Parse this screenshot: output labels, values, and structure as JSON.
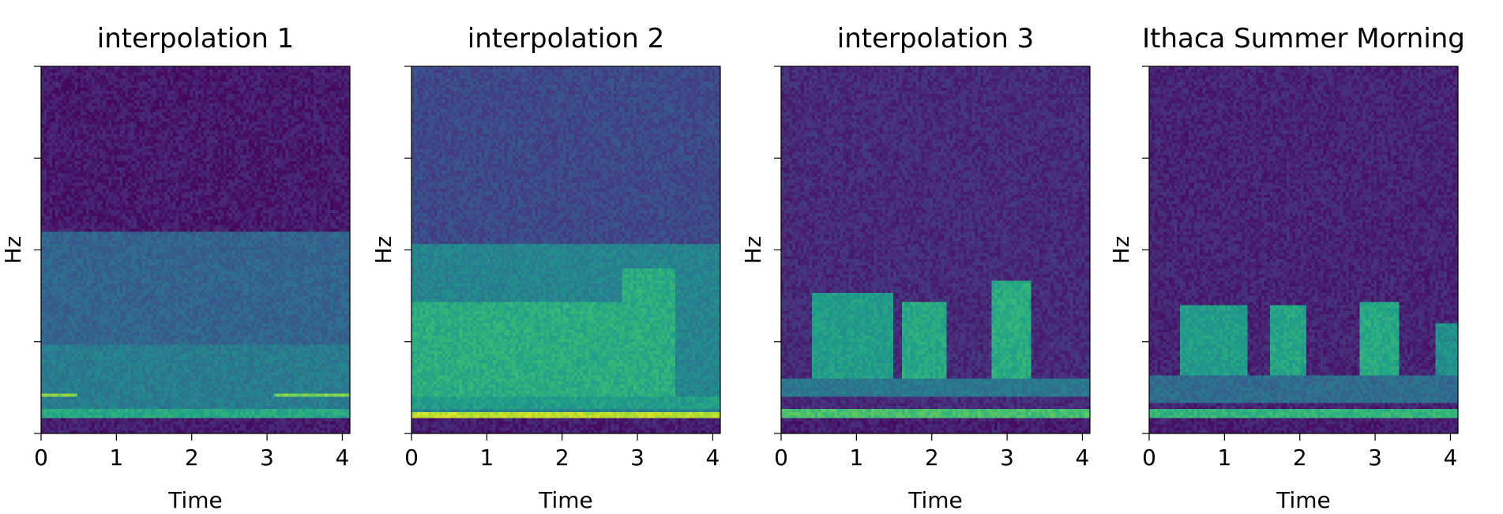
{
  "chart_data": [
    {
      "type": "heatmap",
      "title": "interpolation 1",
      "xlabel": "Time",
      "ylabel": "Hz",
      "xlim": [
        0,
        4.1
      ],
      "xticks": [
        "0",
        "1",
        "2",
        "3",
        "4"
      ],
      "colormap": "viridis",
      "tone": {
        "base": 0.07,
        "bands": [
          {
            "x0": 0.0,
            "x1": 4.1,
            "y0": 0.0,
            "y1": 0.55,
            "level": 0.32
          },
          {
            "x0": 0.0,
            "x1": 4.1,
            "y0": 0.0,
            "y1": 0.24,
            "level": 0.42
          },
          {
            "x0": 0.0,
            "x1": 0.5,
            "y0": 0.1,
            "y1": 0.11,
            "level": 0.8
          },
          {
            "x0": 3.1,
            "x1": 4.1,
            "y0": 0.1,
            "y1": 0.11,
            "level": 0.8
          },
          {
            "x0": 0.0,
            "x1": 4.1,
            "y0": 0.045,
            "y1": 0.065,
            "level": 0.6
          }
        ]
      }
    },
    {
      "type": "heatmap",
      "title": "interpolation 2",
      "xlabel": "Time",
      "ylabel": "Hz",
      "xlim": [
        0,
        4.1
      ],
      "xticks": [
        "0",
        "1",
        "2",
        "3",
        "4"
      ],
      "colormap": "viridis",
      "tone": {
        "base": 0.22,
        "bands": [
          {
            "x0": 0.0,
            "x1": 4.1,
            "y0": 0.0,
            "y1": 0.52,
            "level": 0.45
          },
          {
            "x0": 0.0,
            "x1": 3.2,
            "y0": 0.1,
            "y1": 0.36,
            "level": 0.62
          },
          {
            "x0": 2.8,
            "x1": 3.5,
            "y0": 0.1,
            "y1": 0.45,
            "level": 0.62
          },
          {
            "x0": 0.0,
            "x1": 4.1,
            "y0": 0.07,
            "y1": 0.1,
            "level": 0.55
          },
          {
            "x0": 0.0,
            "x1": 4.1,
            "y0": 0.04,
            "y1": 0.06,
            "level": 0.9
          }
        ]
      }
    },
    {
      "type": "heatmap",
      "title": "interpolation 3",
      "xlabel": "Time",
      "ylabel": "Hz",
      "xlim": [
        0,
        4.1
      ],
      "xticks": [
        "0",
        "1",
        "2",
        "3",
        "4"
      ],
      "colormap": "viridis",
      "tone": {
        "base": 0.12,
        "bands": [
          {
            "x0": 0.4,
            "x1": 1.5,
            "y0": 0.15,
            "y1": 0.38,
            "level": 0.55
          },
          {
            "x0": 1.6,
            "x1": 2.2,
            "y0": 0.15,
            "y1": 0.36,
            "level": 0.6
          },
          {
            "x0": 2.8,
            "x1": 3.3,
            "y0": 0.15,
            "y1": 0.42,
            "level": 0.62
          },
          {
            "x0": 0.0,
            "x1": 4.1,
            "y0": 0.1,
            "y1": 0.15,
            "level": 0.4
          },
          {
            "x0": 0.0,
            "x1": 4.1,
            "y0": 0.045,
            "y1": 0.065,
            "level": 0.7
          }
        ]
      }
    },
    {
      "type": "heatmap",
      "title": "Ithaca Summer Morning",
      "xlabel": "Time",
      "ylabel": "Hz",
      "xlim": [
        0,
        4.1
      ],
      "xticks": [
        "0",
        "1",
        "2",
        "3",
        "4"
      ],
      "colormap": "viridis",
      "tone": {
        "base": 0.1,
        "bands": [
          {
            "x0": 0.4,
            "x1": 1.3,
            "y0": 0.16,
            "y1": 0.35,
            "level": 0.55
          },
          {
            "x0": 1.6,
            "x1": 2.1,
            "y0": 0.16,
            "y1": 0.35,
            "level": 0.58
          },
          {
            "x0": 2.8,
            "x1": 3.3,
            "y0": 0.16,
            "y1": 0.36,
            "level": 0.6
          },
          {
            "x0": 3.8,
            "x1": 4.1,
            "y0": 0.16,
            "y1": 0.3,
            "level": 0.5
          },
          {
            "x0": 0.0,
            "x1": 4.1,
            "y0": 0.08,
            "y1": 0.16,
            "level": 0.35
          },
          {
            "x0": 0.0,
            "x1": 4.1,
            "y0": 0.045,
            "y1": 0.065,
            "level": 0.65
          }
        ]
      }
    }
  ]
}
